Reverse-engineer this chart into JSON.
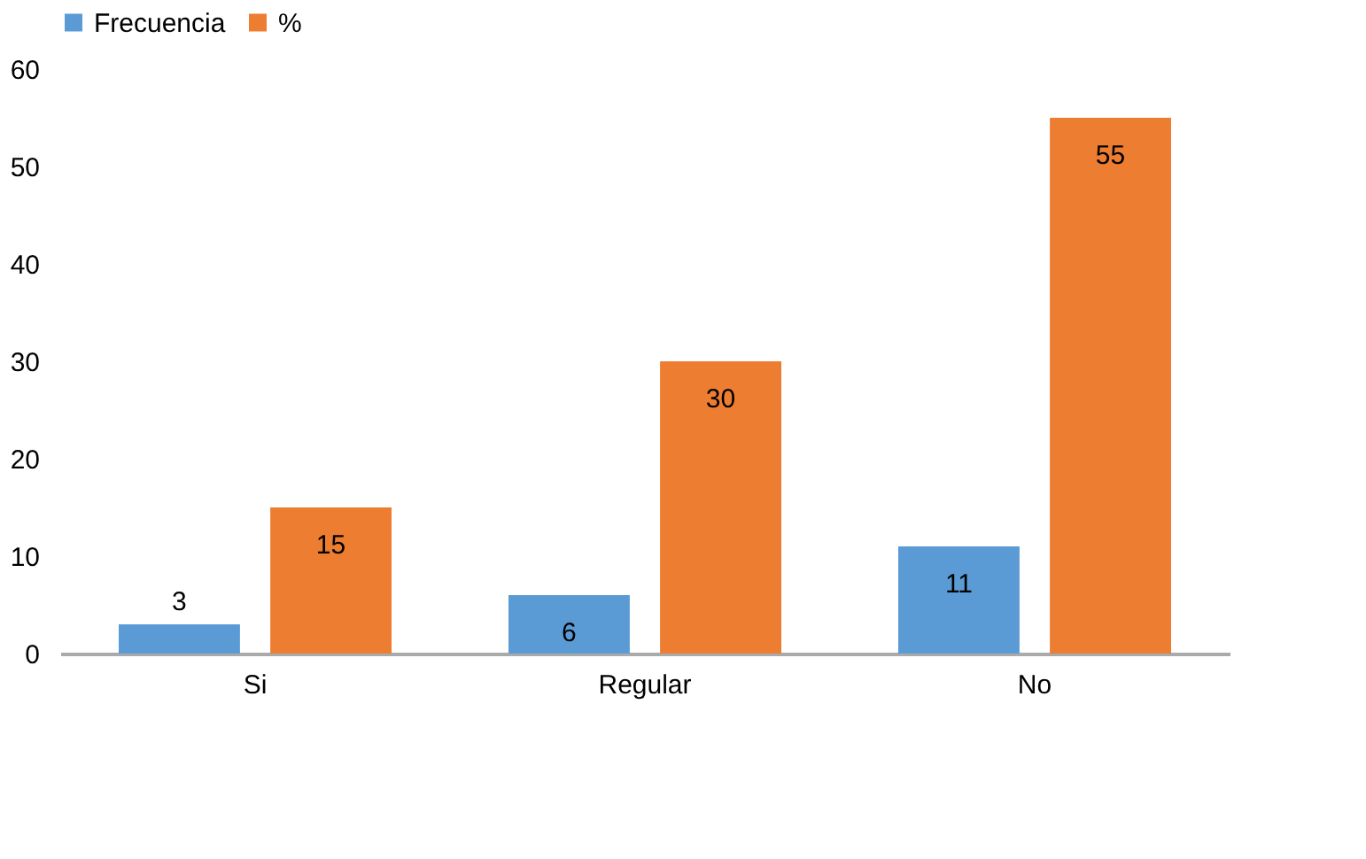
{
  "chart_data": {
    "type": "bar",
    "categories": [
      "Si",
      "Regular",
      "No"
    ],
    "series": [
      {
        "name": "Frecuencia",
        "color": "#5b9bd5",
        "values": [
          3,
          6,
          11
        ]
      },
      {
        "name": "%",
        "color": "#ed7d31",
        "values": [
          15,
          30,
          55
        ]
      }
    ],
    "ylim": [
      0,
      60
    ],
    "yticks": [
      0,
      10,
      20,
      30,
      40,
      50,
      60
    ],
    "grid": false,
    "legend": "top",
    "data_labels": true
  }
}
